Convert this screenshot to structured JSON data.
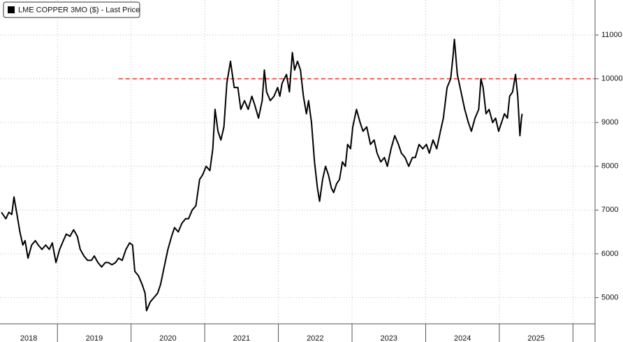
{
  "chart_data": {
    "type": "line",
    "x": [
      2018.24,
      2018.3,
      2018.34,
      2018.38,
      2018.41,
      2018.45,
      2018.49,
      2018.53,
      2018.56,
      2018.6,
      2018.65,
      2018.7,
      2018.74,
      2018.79,
      2018.84,
      2018.89,
      2018.93,
      2018.98,
      2019.03,
      2019.08,
      2019.12,
      2019.17,
      2019.22,
      2019.27,
      2019.31,
      2019.36,
      2019.41,
      2019.46,
      2019.5,
      2019.55,
      2019.6,
      2019.65,
      2019.69,
      2019.74,
      2019.79,
      2019.83,
      2019.88,
      2019.93,
      2019.98,
      2020.02,
      2020.05,
      2020.1,
      2020.15,
      2020.19,
      2020.21,
      2020.26,
      2020.31,
      2020.36,
      2020.4,
      2020.45,
      2020.5,
      2020.55,
      2020.59,
      2020.64,
      2020.69,
      2020.74,
      2020.78,
      2020.83,
      2020.88,
      2020.93,
      2020.97,
      2021.02,
      2021.07,
      2021.11,
      2021.14,
      2021.18,
      2021.22,
      2021.26,
      2021.3,
      2021.35,
      2021.4,
      2021.45,
      2021.49,
      2021.54,
      2021.59,
      2021.64,
      2021.68,
      2021.73,
      2021.78,
      2021.81,
      2021.84,
      2021.89,
      2021.94,
      2021.99,
      2022.02,
      2022.05,
      2022.11,
      2022.15,
      2022.19,
      2022.22,
      2022.26,
      2022.3,
      2022.34,
      2022.38,
      2022.41,
      2022.45,
      2022.49,
      2022.53,
      2022.56,
      2022.6,
      2022.64,
      2022.68,
      2022.72,
      2022.75,
      2022.79,
      2022.83,
      2022.87,
      2022.91,
      2022.94,
      2022.98,
      2023.01,
      2023.06,
      2023.11,
      2023.15,
      2023.2,
      2023.25,
      2023.3,
      2023.34,
      2023.39,
      2023.44,
      2023.48,
      2023.53,
      2023.58,
      2023.63,
      2023.67,
      2023.72,
      2023.77,
      2023.82,
      2023.86,
      2023.91,
      2023.96,
      2024.01,
      2024.05,
      2024.1,
      2024.15,
      2024.2,
      2024.24,
      2024.29,
      2024.34,
      2024.37,
      2024.39,
      2024.43,
      2024.48,
      2024.53,
      2024.58,
      2024.62,
      2024.67,
      2024.72,
      2024.75,
      2024.78,
      2024.82,
      2024.86,
      2024.91,
      2024.95,
      2024.99,
      2025.03,
      2025.07,
      2025.11,
      2025.14,
      2025.18,
      2025.22,
      2025.25,
      2025.28,
      2025.3,
      2025.31
    ],
    "series": [
      {
        "name": "LME COPPER 3MO ($) - Last Price",
        "color": "#000000",
        "values": [
          6950,
          6800,
          6950,
          6900,
          7300,
          6900,
          6500,
          6200,
          6300,
          5900,
          6200,
          6300,
          6200,
          6100,
          6200,
          6100,
          6250,
          5800,
          6100,
          6300,
          6450,
          6400,
          6550,
          6400,
          6100,
          5950,
          5850,
          5850,
          5950,
          5800,
          5700,
          5800,
          5800,
          5750,
          5800,
          5900,
          5850,
          6100,
          6250,
          6200,
          5600,
          5500,
          5300,
          5100,
          4700,
          4900,
          5000,
          5100,
          5300,
          5700,
          6100,
          6400,
          6600,
          6500,
          6700,
          6800,
          6800,
          7000,
          7100,
          7700,
          7800,
          8000,
          7900,
          8400,
          9300,
          8800,
          8600,
          8900,
          9900,
          10400,
          9800,
          9800,
          9300,
          9500,
          9300,
          9600,
          9400,
          9100,
          9500,
          10200,
          9700,
          9500,
          9600,
          9800,
          9600,
          9900,
          10100,
          9700,
          10600,
          10200,
          10400,
          10200,
          9600,
          9200,
          9500,
          9000,
          8100,
          7500,
          7200,
          7700,
          8000,
          7800,
          7500,
          7400,
          7600,
          7700,
          8100,
          8000,
          8500,
          8400,
          8900,
          9300,
          9000,
          8800,
          8900,
          8500,
          8600,
          8300,
          8100,
          8200,
          8000,
          8400,
          8700,
          8500,
          8300,
          8200,
          8000,
          8200,
          8200,
          8500,
          8400,
          8500,
          8300,
          8600,
          8400,
          8800,
          9100,
          9800,
          10000,
          10500,
          10900,
          10100,
          9700,
          9300,
          9000,
          8800,
          9100,
          9300,
          10000,
          9800,
          9200,
          9300,
          9000,
          9100,
          8800,
          9000,
          9200,
          9100,
          9600,
          9700,
          10100,
          9600,
          8700,
          9100,
          9200
        ]
      }
    ],
    "xlim": [
      2018.22,
      2026.3
    ],
    "xticks": [
      {
        "value": 2018,
        "label": "2018"
      },
      {
        "value": 2019,
        "label": "2019"
      },
      {
        "value": 2020,
        "label": "2020"
      },
      {
        "value": 2021,
        "label": "2021"
      },
      {
        "value": 2022,
        "label": "2022"
      },
      {
        "value": 2023,
        "label": "2023"
      },
      {
        "value": 2024,
        "label": "2024"
      },
      {
        "value": 2025,
        "label": "2025"
      }
    ],
    "ylim": [
      4400,
      11800
    ],
    "yticks": [
      5000,
      6000,
      7000,
      8000,
      9000,
      10000,
      11000
    ],
    "grid": true,
    "reference_line": {
      "value": 10000,
      "x_start": 2019.83,
      "color": "#e8322b"
    },
    "legend": "top-left"
  }
}
